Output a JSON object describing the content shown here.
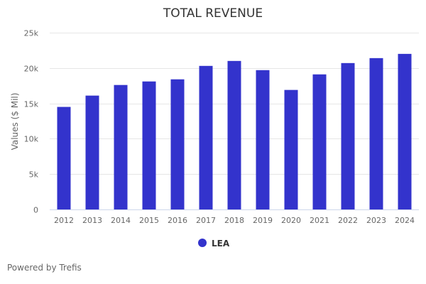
{
  "chart_data": {
    "type": "bar",
    "title": "TOTAL REVENUE",
    "xlabel": "",
    "ylabel": "Values ($ Mil)",
    "categories": [
      "2012",
      "2013",
      "2014",
      "2015",
      "2016",
      "2017",
      "2018",
      "2019",
      "2020",
      "2021",
      "2022",
      "2023",
      "2024"
    ],
    "series": [
      {
        "name": "LEA",
        "color": "#3333cc",
        "values": [
          14500,
          16100,
          17600,
          18100,
          18400,
          20300,
          21000,
          19700,
          16900,
          19100,
          20700,
          21400,
          22000
        ]
      }
    ],
    "ylim": [
      0,
      25000
    ],
    "yticks": [
      0,
      5000,
      10000,
      15000,
      20000,
      25000
    ],
    "ytick_labels": [
      "0",
      "5k",
      "10k",
      "15k",
      "20k",
      "25k"
    ],
    "grid": true,
    "legend": "bottom-center"
  },
  "footer": {
    "credit": "Powered by Trefis"
  }
}
